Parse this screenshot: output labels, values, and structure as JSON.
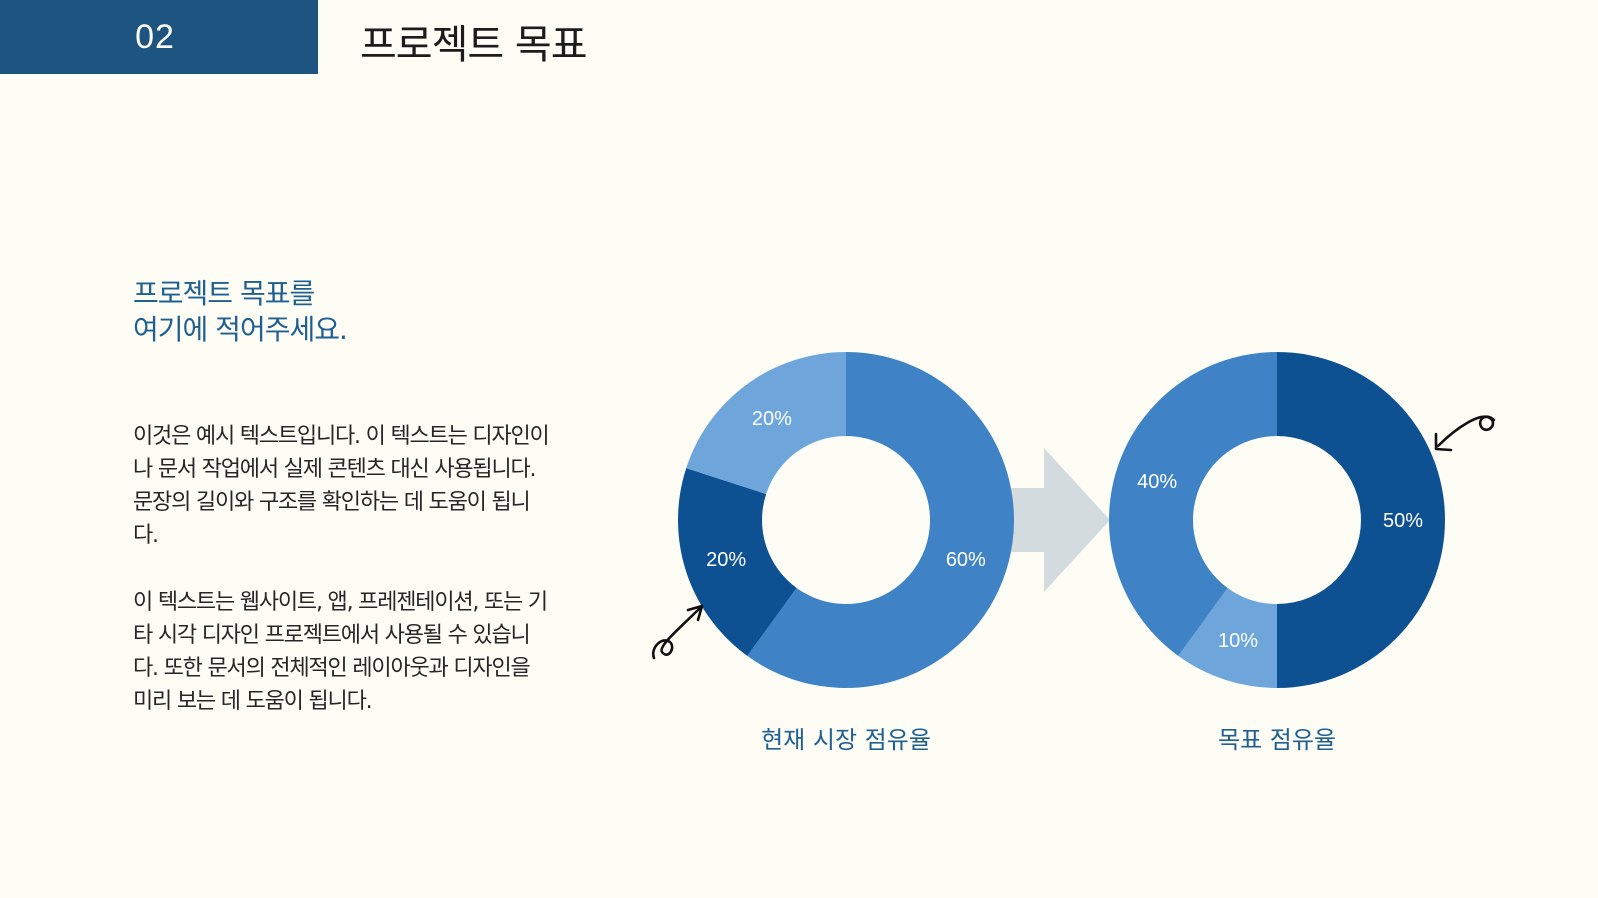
{
  "colors": {
    "background": "#fdfcf5",
    "tab": "#1d5480",
    "headline": "#1f5f92",
    "caption": "#1f5f92",
    "arrow": "#d3dbde",
    "dark_blue": "#0d5192",
    "mid_blue": "#3f83c6",
    "light_blue": "#6ea6dc"
  },
  "header": {
    "section_number": "02",
    "title": "프로젝트 목표"
  },
  "headline": {
    "line1": "프로젝트 목표를",
    "line2": "여기에 적어주세요."
  },
  "body": {
    "paragraph1": "이것은 예시 텍스트입니다. 이 텍스트는 디자인이나 문서 작업에서 실제 콘텐츠 대신 사용됩니다. 문장의 길이와 구조를 확인하는 데 도움이 됩니다.",
    "paragraph2": "이 텍스트는 웹사이트, 앱, 프레젠테이션, 또는 기타 시각 디자인 프로젝트에서 사용될 수 있습니다. 또한 문서의 전체적인 레이아웃과 디자인을 미리 보는 데 도움이 됩니다."
  },
  "chart_data": [
    {
      "type": "pie",
      "style": "donut",
      "title": "현재 시장 점유율",
      "slices": [
        {
          "label": "60%",
          "value": 60,
          "color": "#3f83c6"
        },
        {
          "label": "20%",
          "value": 20,
          "color": "#0d5192"
        },
        {
          "label": "20%",
          "value": 20,
          "color": "#6ea6dc"
        }
      ]
    },
    {
      "type": "pie",
      "style": "donut",
      "title": "목표 점유율",
      "slices": [
        {
          "label": "50%",
          "value": 50,
          "color": "#0d5192"
        },
        {
          "label": "10%",
          "value": 10,
          "color": "#6ea6dc"
        },
        {
          "label": "40%",
          "value": 40,
          "color": "#3f83c6"
        }
      ]
    }
  ]
}
